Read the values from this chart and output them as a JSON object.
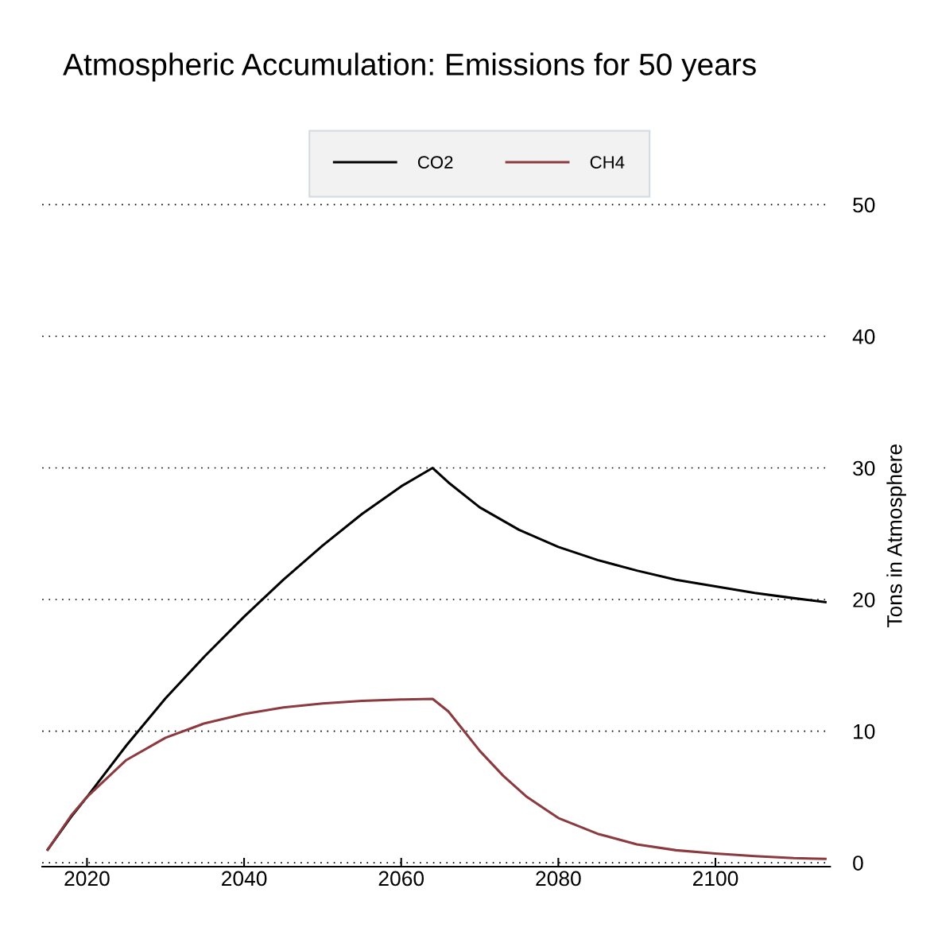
{
  "chart_data": {
    "type": "line",
    "title": "Atmospheric Accumulation: Emissions for 50 years",
    "ylabel": "Tons in Atmosphere",
    "xlim": [
      2014.3,
      2114.6
    ],
    "xticks": [
      2020,
      2040,
      2060,
      2080,
      2100
    ],
    "ylim": [
      -0.3,
      50
    ],
    "yticks": [
      0,
      10,
      20,
      30,
      40,
      50
    ],
    "grid": "y",
    "legend": "top",
    "line_style": "solid",
    "marker": "none",
    "series": [
      {
        "name": "CO2",
        "color": "#000000",
        "x": [
          2015,
          2018,
          2020,
          2025,
          2030,
          2035,
          2040,
          2045,
          2050,
          2055,
          2060,
          2064,
          2066,
          2070,
          2075,
          2080,
          2085,
          2090,
          2095,
          2100,
          2105,
          2110,
          2114
        ],
        "values": [
          1.0,
          3.5,
          5.0,
          8.9,
          12.5,
          15.7,
          18.7,
          21.5,
          24.1,
          26.5,
          28.6,
          30.0,
          28.9,
          27.0,
          25.3,
          24.0,
          23.0,
          22.2,
          21.5,
          21.0,
          20.5,
          20.1,
          19.8
        ]
      },
      {
        "name": "CH4",
        "color": "#8b3a3f",
        "x": [
          2015,
          2018,
          2020,
          2025,
          2030,
          2035,
          2040,
          2045,
          2050,
          2055,
          2060,
          2064,
          2066,
          2068,
          2070,
          2073,
          2076,
          2080,
          2085,
          2090,
          2095,
          2100,
          2105,
          2110,
          2114
        ],
        "values": [
          1.0,
          3.6,
          5.0,
          7.8,
          9.5,
          10.6,
          11.3,
          11.8,
          12.1,
          12.3,
          12.4,
          12.45,
          11.5,
          10.0,
          8.5,
          6.6,
          5.0,
          3.4,
          2.2,
          1.4,
          0.95,
          0.7,
          0.5,
          0.35,
          0.3
        ]
      }
    ]
  }
}
